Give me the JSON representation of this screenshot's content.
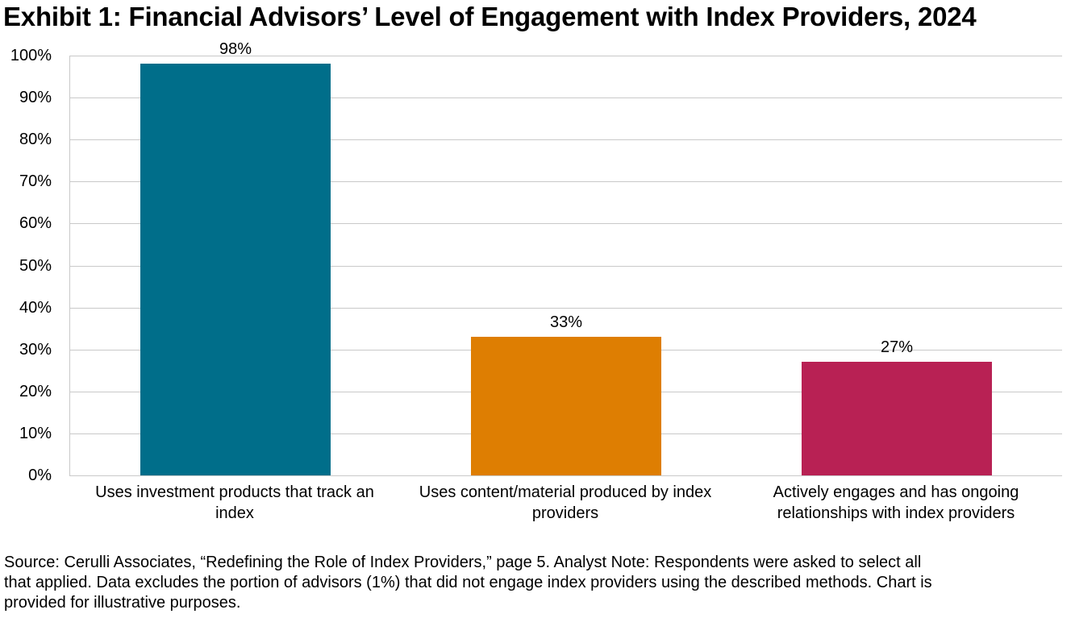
{
  "title": "Exhibit 1: Financial Advisors’ Level of Engagement with Index Providers, 2024",
  "chart_data": {
    "type": "bar",
    "title": "Exhibit 1: Financial Advisors’ Level of Engagement with Index Providers, 2024",
    "categories": [
      "Uses investment products that track an\nindex",
      "Uses content/material produced by index\nproviders",
      "Actively engages and has ongoing\nrelationships with index providers"
    ],
    "values": [
      98,
      33,
      27
    ],
    "value_labels": [
      "98%",
      "33%",
      "27%"
    ],
    "bar_colors": [
      "#006e8a",
      "#de7e02",
      "#b82154"
    ],
    "xlabel": "",
    "ylabel": "",
    "ylim": [
      0,
      100
    ],
    "ytick_labels": [
      "0%",
      "10%",
      "20%",
      "30%",
      "40%",
      "50%",
      "60%",
      "70%",
      "80%",
      "90%",
      "100%"
    ],
    "grid": "horizontal",
    "gridline_color": "#c9c9c9",
    "legend": "none"
  },
  "footnote": {
    "text": "Source: Cerulli Associates, “Redefining the Role of Index Providers,” page 5. Analyst Note: Respondents were asked to select all\nthat applied. Data excludes the portion of advisors (1%) that did not engage index providers using the described methods. Chart is\nprovided for illustrative purposes."
  }
}
